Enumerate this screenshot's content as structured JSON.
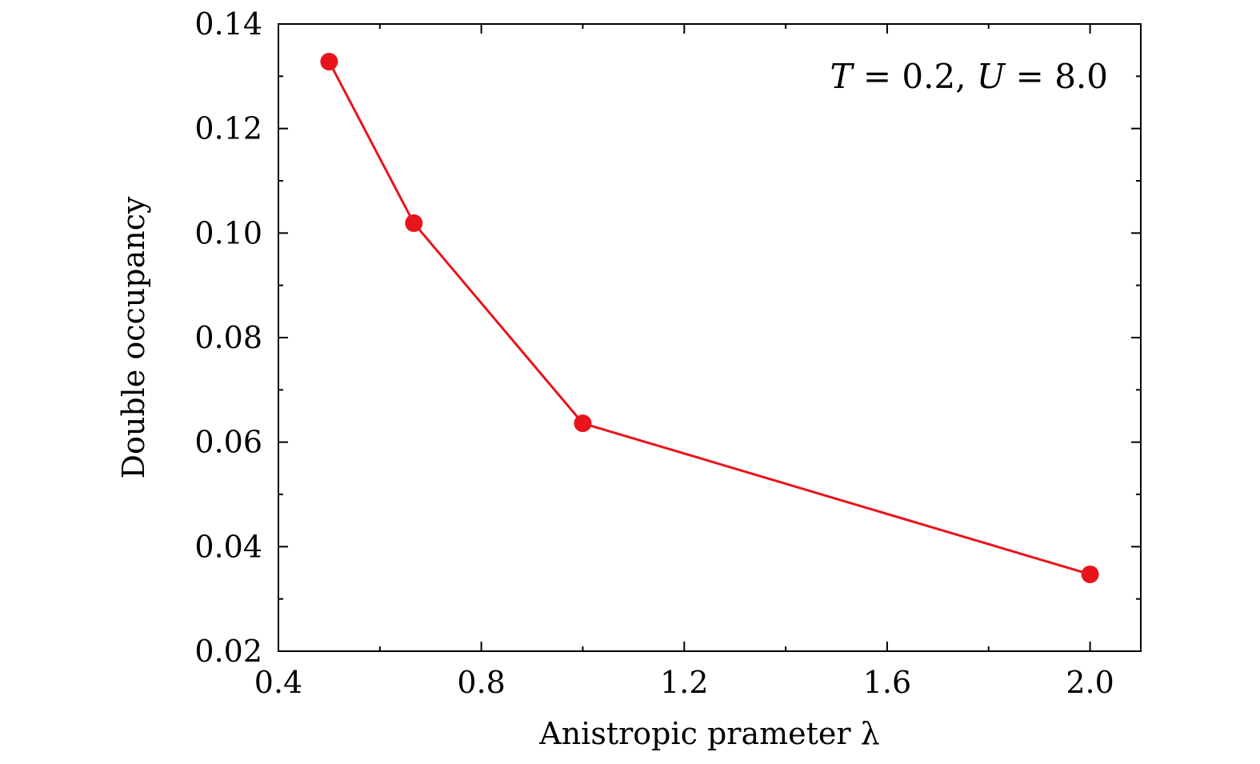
{
  "chart_data": {
    "type": "line",
    "title": "",
    "xlabel": "Anistropic prameter λ",
    "ylabel": "Double occupancy",
    "xlim": [
      0.4,
      2.1
    ],
    "ylim": [
      0.02,
      0.14
    ],
    "x_ticks": [
      "0.4",
      "0.8",
      "1.2",
      "1.6",
      "2.0"
    ],
    "x_tick_values": [
      0.4,
      0.8,
      1.2,
      1.6,
      2.0
    ],
    "y_ticks": [
      "0.02",
      "0.04",
      "0.06",
      "0.08",
      "0.10",
      "0.12",
      "0.14"
    ],
    "y_tick_values": [
      0.02,
      0.04,
      0.06,
      0.08,
      0.1,
      0.12,
      0.14
    ],
    "annotation": {
      "t_symbol": "T",
      "t_value": " = 0.2, ",
      "u_symbol": "U",
      "u_value": " = 8.0"
    },
    "grid": false,
    "series": [
      {
        "color": "#e8141b",
        "x": [
          0.5,
          0.667,
          1.0,
          2.0
        ],
        "y": [
          0.1328,
          0.1019,
          0.0636,
          0.0347
        ]
      }
    ]
  }
}
